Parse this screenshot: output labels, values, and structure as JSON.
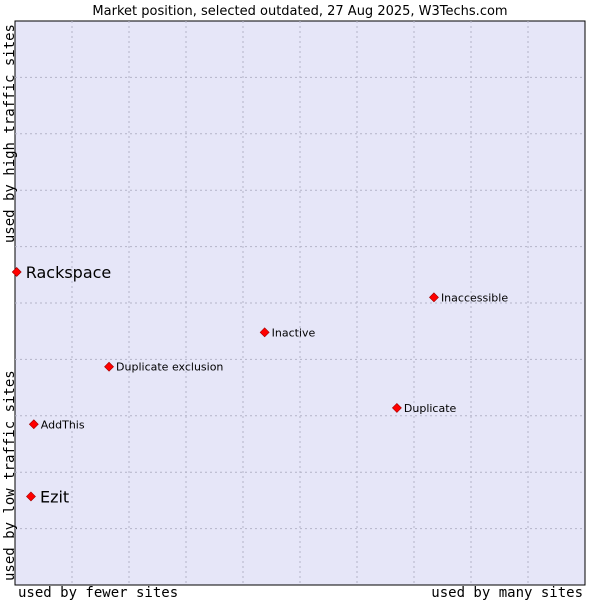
{
  "chart_data": {
    "type": "scatter",
    "title": "Market position, selected outdated, 27 Aug 2025, W3Techs.com",
    "xlabel_left": "used by fewer sites",
    "xlabel_right": "used by many sites",
    "ylabel_bottom": "used by low traffic sites",
    "ylabel_top": "used by high traffic sites",
    "xlim": [
      0,
      100
    ],
    "ylim": [
      0,
      100
    ],
    "grid": true,
    "colors": {
      "plot_background": "#e6e6f8",
      "grid": "#b4b4c8",
      "marker": "#ff0000"
    },
    "points": [
      {
        "label": "Rackspace",
        "x": 0.3,
        "y": 55.5,
        "emphasis": true
      },
      {
        "label": "Inaccessible",
        "x": 73.5,
        "y": 51.0,
        "emphasis": false
      },
      {
        "label": "Inactive",
        "x": 43.8,
        "y": 44.8,
        "emphasis": false
      },
      {
        "label": "Duplicate exclusion",
        "x": 16.5,
        "y": 38.7,
        "emphasis": false
      },
      {
        "label": "Duplicate",
        "x": 67.0,
        "y": 31.4,
        "emphasis": false
      },
      {
        "label": "AddThis",
        "x": 3.3,
        "y": 28.5,
        "emphasis": false
      },
      {
        "label": "Ezit",
        "x": 2.8,
        "y": 15.7,
        "emphasis": true
      }
    ]
  }
}
